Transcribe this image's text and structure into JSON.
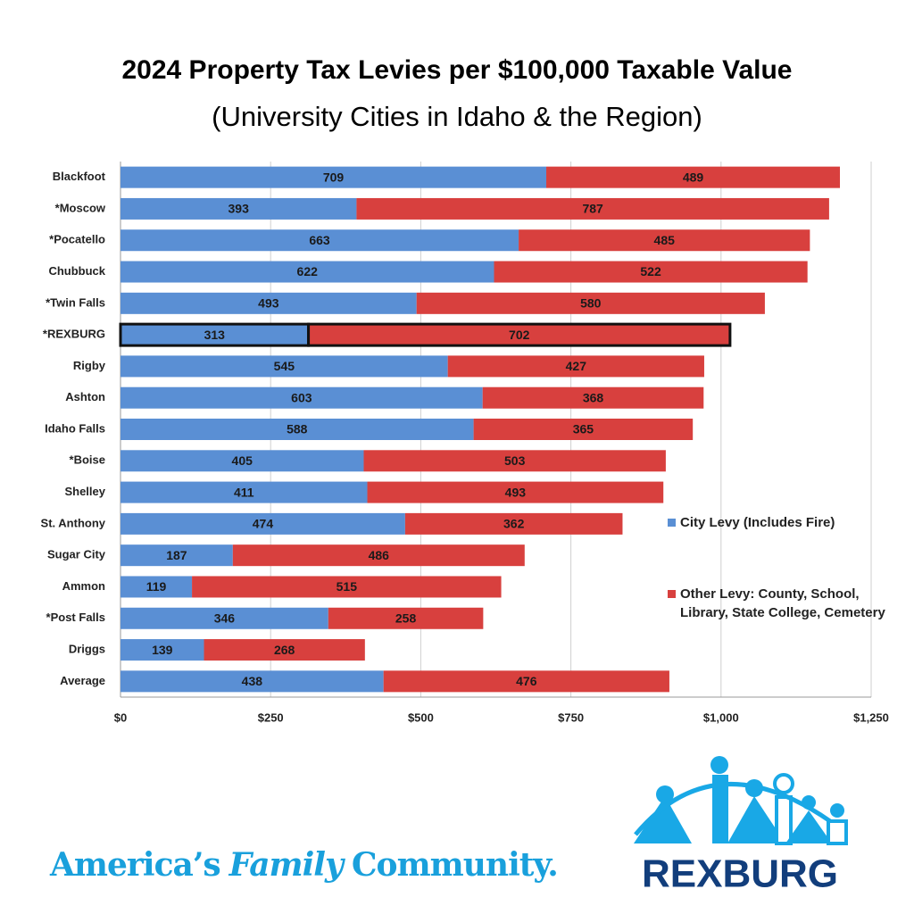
{
  "chart_data": {
    "type": "stacked-barh",
    "title": "2024 Property Tax Levies per $100,000 Taxable Value",
    "subtitle": "(University Cities in Idaho & the Region)",
    "categories": [
      "Blackfoot",
      "*Moscow",
      "*Pocatello",
      "Chubbuck",
      "*Twin Falls",
      "*REXBURG",
      "Rigby",
      "Ashton",
      "Idaho Falls",
      "*Boise",
      "Shelley",
      "St. Anthony",
      "Sugar City",
      "Ammon",
      "*Post Falls",
      "Driggs",
      "Average"
    ],
    "series": [
      {
        "name": "City Levy (Includes Fire)",
        "color": "#5a8fd4",
        "values": [
          709,
          393,
          663,
          622,
          493,
          313,
          545,
          603,
          588,
          405,
          411,
          474,
          187,
          119,
          346,
          139,
          438
        ]
      },
      {
        "name": "Other Levy: County, School, Library, State College, Cemetery",
        "color": "#d8403e",
        "values": [
          489,
          787,
          485,
          522,
          580,
          702,
          427,
          368,
          365,
          503,
          493,
          362,
          486,
          515,
          258,
          268,
          476
        ]
      }
    ],
    "xlim": [
      0,
      1250
    ],
    "xticks": [
      {
        "value": 0,
        "label": "$0"
      },
      {
        "value": 250,
        "label": "$250"
      },
      {
        "value": 500,
        "label": "$500"
      },
      {
        "value": 750,
        "label": "$750"
      },
      {
        "value": 1000,
        "label": "$1,000"
      },
      {
        "value": 1250,
        "label": "$1,250"
      }
    ],
    "grid": true,
    "highlight_index": 5
  },
  "footer": {
    "slogan": [
      "America’s",
      "Family",
      "Community."
    ],
    "logo": "REXBURG"
  }
}
